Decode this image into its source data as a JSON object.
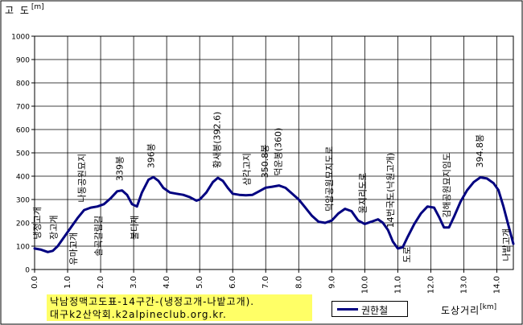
{
  "chart_data": {
    "type": "line",
    "title_line1": "낙남정맥고도표-14구간-(냉정고개-나밭고개).",
    "title_line2": "대구k2산악회.k2alpineclub.org.kr.",
    "ylabel": "고 도",
    "ylabel_unit": "[m]",
    "xlabel": "도상거리",
    "xlabel_unit": "[km]",
    "ylim": [
      0,
      1000
    ],
    "xlim": [
      0,
      14.5
    ],
    "y_ticks": [
      "0",
      "100",
      "200",
      "300",
      "400",
      "500",
      "600",
      "700",
      "800",
      "900",
      "1000"
    ],
    "x_ticks": [
      "0.0",
      "1.0",
      "2.0",
      "3.0",
      "4.0",
      "5.0",
      "6.0",
      "7.0",
      "8.0",
      "9.0",
      "10.0",
      "11.0",
      "12.0",
      "13.0",
      "14.0"
    ],
    "grid": true,
    "legend_position": "bottom",
    "series": [
      {
        "name": "권한철",
        "color": "#000080",
        "x": [
          0,
          0.2,
          0.4,
          0.55,
          0.7,
          0.9,
          1.1,
          1.3,
          1.5,
          1.7,
          1.9,
          2.1,
          2.3,
          2.5,
          2.65,
          2.8,
          2.95,
          3.1,
          3.25,
          3.45,
          3.6,
          3.75,
          3.9,
          4.1,
          4.3,
          4.5,
          4.7,
          4.9,
          5.0,
          5.2,
          5.4,
          5.55,
          5.7,
          5.85,
          6.0,
          6.2,
          6.4,
          6.6,
          6.8,
          7.0,
          7.2,
          7.4,
          7.6,
          7.8,
          8.0,
          8.2,
          8.4,
          8.6,
          8.8,
          9.0,
          9.2,
          9.4,
          9.6,
          9.8,
          10.0,
          10.2,
          10.4,
          10.55,
          10.7,
          10.85,
          11.0,
          11.15,
          11.3,
          11.5,
          11.7,
          11.9,
          12.1,
          12.25,
          12.4,
          12.55,
          12.7,
          12.9,
          13.1,
          13.3,
          13.5,
          13.7,
          13.9,
          14.05,
          14.2,
          14.35,
          14.5
        ],
        "values": [
          90,
          85,
          75,
          80,
          100,
          140,
          180,
          220,
          255,
          265,
          270,
          280,
          305,
          335,
          339,
          320,
          280,
          270,
          330,
          385,
          396,
          380,
          350,
          330,
          325,
          320,
          310,
          295,
          300,
          330,
          375,
          392.6,
          380,
          350,
          325,
          320,
          318,
          320,
          335,
          350.8,
          355,
          360,
          350,
          325,
          300,
          265,
          230,
          205,
          200,
          210,
          240,
          260,
          250,
          210,
          195,
          205,
          215,
          200,
          170,
          120,
          90,
          95,
          140,
          195,
          240,
          270,
          265,
          225,
          180,
          180,
          225,
          290,
          340,
          375,
          394.8,
          390,
          370,
          340,
          270,
          190,
          110
        ]
      }
    ],
    "annotations": [
      {
        "x": 0.1,
        "text": "냉정고개"
      },
      {
        "x": 0.6,
        "text": "장고개"
      },
      {
        "x": 1.2,
        "text": "유마고개"
      },
      {
        "x": 1.45,
        "text": "나동공원묘지"
      },
      {
        "x": 1.95,
        "text": "솔곡갈림길"
      },
      {
        "x": 2.6,
        "text": "339봉"
      },
      {
        "x": 3.05,
        "text": "불티재"
      },
      {
        "x": 3.55,
        "text": "396봉"
      },
      {
        "x": 5.55,
        "text": "황새봉(392.6)"
      },
      {
        "x": 6.45,
        "text": "삼각고지"
      },
      {
        "x": 7.0,
        "text": "350.8봉"
      },
      {
        "x": 7.4,
        "text": "덕운봉(360)"
      },
      {
        "x": 8.95,
        "text": "덕암공원묘지도로"
      },
      {
        "x": 9.95,
        "text": "울지리도로"
      },
      {
        "x": 10.8,
        "text": "14번국도(낙원고개)"
      },
      {
        "x": 11.3,
        "text": "도로"
      },
      {
        "x": 12.5,
        "text": "김해공원묘지임도"
      },
      {
        "x": 13.5,
        "text": "394.8봉"
      },
      {
        "x": 14.3,
        "text": "나밭고개"
      }
    ]
  }
}
